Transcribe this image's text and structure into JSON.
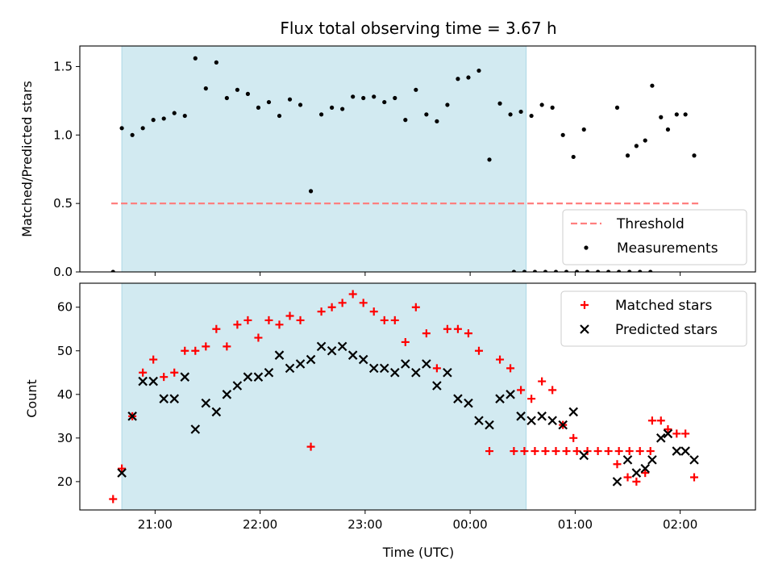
{
  "figure": {
    "title": "Flux total observing time = 3.67 h",
    "xlabel": "Time (UTC)",
    "x_ticks": [
      "21:00",
      "22:00",
      "23:00",
      "00:00",
      "01:00",
      "02:00"
    ],
    "observing_window": {
      "start": "20:41",
      "end": "00:32"
    },
    "shade_color": "#add8e6",
    "x_range": [
      "20:17",
      "02:43"
    ]
  },
  "chart_data": [
    {
      "type": "scatter",
      "ylabel": "Matched/Predicted stars",
      "ylim": [
        0,
        1.65
      ],
      "y_ticks": [
        "0.0",
        "0.5",
        "1.0",
        "1.5"
      ],
      "legend": {
        "placement": "lower-right",
        "entries": [
          "Threshold",
          "Measurements"
        ]
      },
      "threshold": {
        "name": "Threshold",
        "value": 0.5,
        "x_range": [
          "20:35",
          "02:12"
        ],
        "color": "#ff7f7f",
        "style": "dashed"
      },
      "series": [
        {
          "name": "Measurements",
          "marker": "dot",
          "color": "#000000",
          "points": [
            [
              "20:36",
              0
            ],
            [
              "20:41",
              1.05
            ],
            [
              "20:47",
              1.0
            ],
            [
              "20:53",
              1.05
            ],
            [
              "20:59",
              1.11
            ],
            [
              "21:05",
              1.12
            ],
            [
              "21:11",
              1.16
            ],
            [
              "21:17",
              1.14
            ],
            [
              "21:23",
              1.56
            ],
            [
              "21:29",
              1.34
            ],
            [
              "21:35",
              1.53
            ],
            [
              "21:41",
              1.27
            ],
            [
              "21:47",
              1.33
            ],
            [
              "21:53",
              1.3
            ],
            [
              "21:59",
              1.2
            ],
            [
              "22:05",
              1.24
            ],
            [
              "22:11",
              1.14
            ],
            [
              "22:17",
              1.26
            ],
            [
              "22:23",
              1.22
            ],
            [
              "22:29",
              0.59
            ],
            [
              "22:35",
              1.15
            ],
            [
              "22:41",
              1.2
            ],
            [
              "22:47",
              1.19
            ],
            [
              "22:53",
              1.28
            ],
            [
              "22:59",
              1.27
            ],
            [
              "23:05",
              1.28
            ],
            [
              "23:11",
              1.24
            ],
            [
              "23:17",
              1.27
            ],
            [
              "23:23",
              1.11
            ],
            [
              "23:29",
              1.33
            ],
            [
              "23:35",
              1.15
            ],
            [
              "23:41",
              1.1
            ],
            [
              "23:47",
              1.22
            ],
            [
              "23:53",
              1.41
            ],
            [
              "23:59",
              1.42
            ],
            [
              "00:05",
              1.47
            ],
            [
              "00:11",
              0.82
            ],
            [
              "00:17",
              1.23
            ],
            [
              "00:23",
              1.15
            ],
            [
              "00:29",
              1.17
            ],
            [
              "00:35",
              1.14
            ],
            [
              "00:41",
              1.22
            ],
            [
              "00:47",
              1.2
            ],
            [
              "00:53",
              1.0
            ],
            [
              "00:59",
              0.84
            ],
            [
              "01:05",
              1.04
            ],
            [
              "00:25",
              0
            ],
            [
              "00:31",
              0
            ],
            [
              "00:37",
              0
            ],
            [
              "00:43",
              0
            ],
            [
              "00:49",
              0
            ],
            [
              "00:55",
              0
            ],
            [
              "01:01",
              0
            ],
            [
              "01:07",
              0
            ],
            [
              "01:13",
              0
            ],
            [
              "01:19",
              0
            ],
            [
              "01:25",
              0
            ],
            [
              "01:31",
              0
            ],
            [
              "01:37",
              0
            ],
            [
              "01:43",
              0
            ],
            [
              "01:24",
              1.2
            ],
            [
              "01:30",
              0.85
            ],
            [
              "01:35",
              0.92
            ],
            [
              "01:40",
              0.96
            ],
            [
              "01:44",
              1.36
            ],
            [
              "01:49",
              1.13
            ],
            [
              "01:53",
              1.04
            ],
            [
              "01:58",
              1.15
            ],
            [
              "02:03",
              1.15
            ],
            [
              "02:08",
              0.85
            ]
          ]
        }
      ]
    },
    {
      "type": "scatter",
      "ylabel": "Count",
      "ylim": [
        13.5,
        65.5
      ],
      "y_ticks": [
        "20",
        "30",
        "40",
        "50",
        "60"
      ],
      "legend": {
        "placement": "upper-right",
        "entries": [
          "Matched stars",
          "Predicted stars"
        ]
      },
      "series": [
        {
          "name": "Matched stars",
          "marker": "plus",
          "color": "#ff0000",
          "points": [
            [
              "20:36",
              16
            ],
            [
              "20:41",
              23
            ],
            [
              "20:47",
              35
            ],
            [
              "20:53",
              45
            ],
            [
              "20:59",
              48
            ],
            [
              "21:05",
              44
            ],
            [
              "21:11",
              45
            ],
            [
              "21:17",
              50
            ],
            [
              "21:23",
              50
            ],
            [
              "21:29",
              51
            ],
            [
              "21:35",
              55
            ],
            [
              "21:41",
              51
            ],
            [
              "21:47",
              56
            ],
            [
              "21:53",
              57
            ],
            [
              "21:59",
              53
            ],
            [
              "22:05",
              57
            ],
            [
              "22:11",
              56
            ],
            [
              "22:17",
              58
            ],
            [
              "22:23",
              57
            ],
            [
              "22:29",
              28
            ],
            [
              "22:35",
              59
            ],
            [
              "22:41",
              60
            ],
            [
              "22:47",
              61
            ],
            [
              "22:53",
              63
            ],
            [
              "22:59",
              61
            ],
            [
              "23:05",
              59
            ],
            [
              "23:11",
              57
            ],
            [
              "23:17",
              57
            ],
            [
              "23:23",
              52
            ],
            [
              "23:29",
              60
            ],
            [
              "23:35",
              54
            ],
            [
              "23:41",
              46
            ],
            [
              "23:47",
              55
            ],
            [
              "23:53",
              55
            ],
            [
              "23:59",
              54
            ],
            [
              "00:05",
              50
            ],
            [
              "00:11",
              27
            ],
            [
              "00:17",
              48
            ],
            [
              "00:23",
              46
            ],
            [
              "00:29",
              41
            ],
            [
              "00:35",
              39
            ],
            [
              "00:41",
              43
            ],
            [
              "00:47",
              41
            ],
            [
              "00:53",
              33
            ],
            [
              "00:59",
              30
            ],
            [
              "00:25",
              27
            ],
            [
              "00:31",
              27
            ],
            [
              "00:37",
              27
            ],
            [
              "00:43",
              27
            ],
            [
              "00:49",
              27
            ],
            [
              "00:55",
              27
            ],
            [
              "01:01",
              27
            ],
            [
              "01:07",
              27
            ],
            [
              "01:13",
              27
            ],
            [
              "01:19",
              27
            ],
            [
              "01:25",
              27
            ],
            [
              "01:31",
              27
            ],
            [
              "01:37",
              27
            ],
            [
              "01:43",
              27
            ],
            [
              "01:24",
              24
            ],
            [
              "01:30",
              21
            ],
            [
              "01:35",
              20
            ],
            [
              "01:40",
              22
            ],
            [
              "01:44",
              34
            ],
            [
              "01:49",
              34
            ],
            [
              "01:53",
              32
            ],
            [
              "01:58",
              31
            ],
            [
              "02:03",
              31
            ],
            [
              "02:08",
              21
            ]
          ]
        },
        {
          "name": "Predicted stars",
          "marker": "x",
          "color": "#000000",
          "points": [
            [
              "20:41",
              22
            ],
            [
              "20:47",
              35
            ],
            [
              "20:53",
              43
            ],
            [
              "20:59",
              43
            ],
            [
              "21:05",
              39
            ],
            [
              "21:11",
              39
            ],
            [
              "21:17",
              44
            ],
            [
              "21:23",
              32
            ],
            [
              "21:29",
              38
            ],
            [
              "21:35",
              36
            ],
            [
              "21:41",
              40
            ],
            [
              "21:47",
              42
            ],
            [
              "21:53",
              44
            ],
            [
              "21:59",
              44
            ],
            [
              "22:05",
              45
            ],
            [
              "22:11",
              49
            ],
            [
              "22:17",
              46
            ],
            [
              "22:23",
              47
            ],
            [
              "22:29",
              48
            ],
            [
              "22:35",
              51
            ],
            [
              "22:41",
              50
            ],
            [
              "22:47",
              51
            ],
            [
              "22:53",
              49
            ],
            [
              "22:59",
              48
            ],
            [
              "23:05",
              46
            ],
            [
              "23:11",
              46
            ],
            [
              "23:17",
              45
            ],
            [
              "23:23",
              47
            ],
            [
              "23:29",
              45
            ],
            [
              "23:35",
              47
            ],
            [
              "23:41",
              42
            ],
            [
              "23:47",
              45
            ],
            [
              "23:53",
              39
            ],
            [
              "23:59",
              38
            ],
            [
              "00:05",
              34
            ],
            [
              "00:11",
              33
            ],
            [
              "00:17",
              39
            ],
            [
              "00:23",
              40
            ],
            [
              "00:29",
              35
            ],
            [
              "00:35",
              34
            ],
            [
              "00:41",
              35
            ],
            [
              "00:47",
              34
            ],
            [
              "00:53",
              33
            ],
            [
              "00:59",
              36
            ],
            [
              "01:05",
              26
            ],
            [
              "01:24",
              20
            ],
            [
              "01:30",
              25
            ],
            [
              "01:35",
              22
            ],
            [
              "01:40",
              23
            ],
            [
              "01:44",
              25
            ],
            [
              "01:49",
              30
            ],
            [
              "01:53",
              31
            ],
            [
              "01:58",
              27
            ],
            [
              "02:03",
              27
            ],
            [
              "02:08",
              25
            ]
          ]
        }
      ]
    }
  ]
}
